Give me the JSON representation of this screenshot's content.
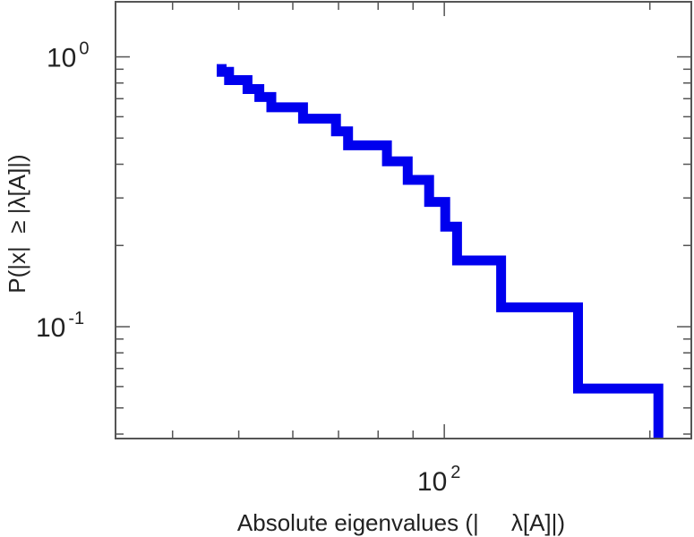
{
  "chart_data": {
    "type": "line",
    "title": "",
    "xlabel": "Absolute eigenvalues (|     λ[A]|)",
    "ylabel": "P(|x|  ≥ |λ[A]|)",
    "x_scale": "log",
    "y_scale": "log",
    "xlim": [
      33,
      230
    ],
    "ylim": [
      0.0385,
      1.6
    ],
    "grid": false,
    "legend": "none",
    "line_color": "#0000ee",
    "x_major_ticks": [
      {
        "value": 100,
        "base": "10",
        "exponent": "2"
      }
    ],
    "x_minor_ticks": [
      40,
      50,
      60,
      70,
      80,
      90,
      200
    ],
    "y_major_ticks": [
      {
        "value": 1,
        "base": "10",
        "exponent": "0"
      },
      {
        "value": 0.1,
        "base": "10",
        "exponent": "-1"
      }
    ],
    "y_minor_ticks": [
      0.04,
      0.05,
      0.06,
      0.07,
      0.08,
      0.09,
      0.2,
      0.3,
      0.4,
      0.5,
      0.6,
      0.7,
      0.8,
      0.9
    ],
    "series": [
      {
        "x": [
          47.2,
          47.2,
          48.4,
          48.4,
          51.5,
          51.5,
          53.6,
          53.6,
          55.8,
          55.8,
          62.1,
          62.1,
          69.4,
          69.4,
          72.3,
          72.3,
          82.4,
          82.4,
          88.4,
          88.4,
          95.0,
          95.0,
          100.3,
          100.3,
          104.4,
          104.4,
          121.1,
          121.1,
          157.0,
          157.0,
          205.8,
          205.8
        ],
        "y": [
          0.94,
          0.88,
          0.88,
          0.82,
          0.82,
          0.76,
          0.76,
          0.71,
          0.71,
          0.65,
          0.65,
          0.59,
          0.59,
          0.53,
          0.53,
          0.47,
          0.47,
          0.41,
          0.41,
          0.35,
          0.35,
          0.29,
          0.29,
          0.235,
          0.235,
          0.176,
          0.176,
          0.118,
          0.118,
          0.059,
          0.059,
          0.0385
        ]
      }
    ]
  }
}
